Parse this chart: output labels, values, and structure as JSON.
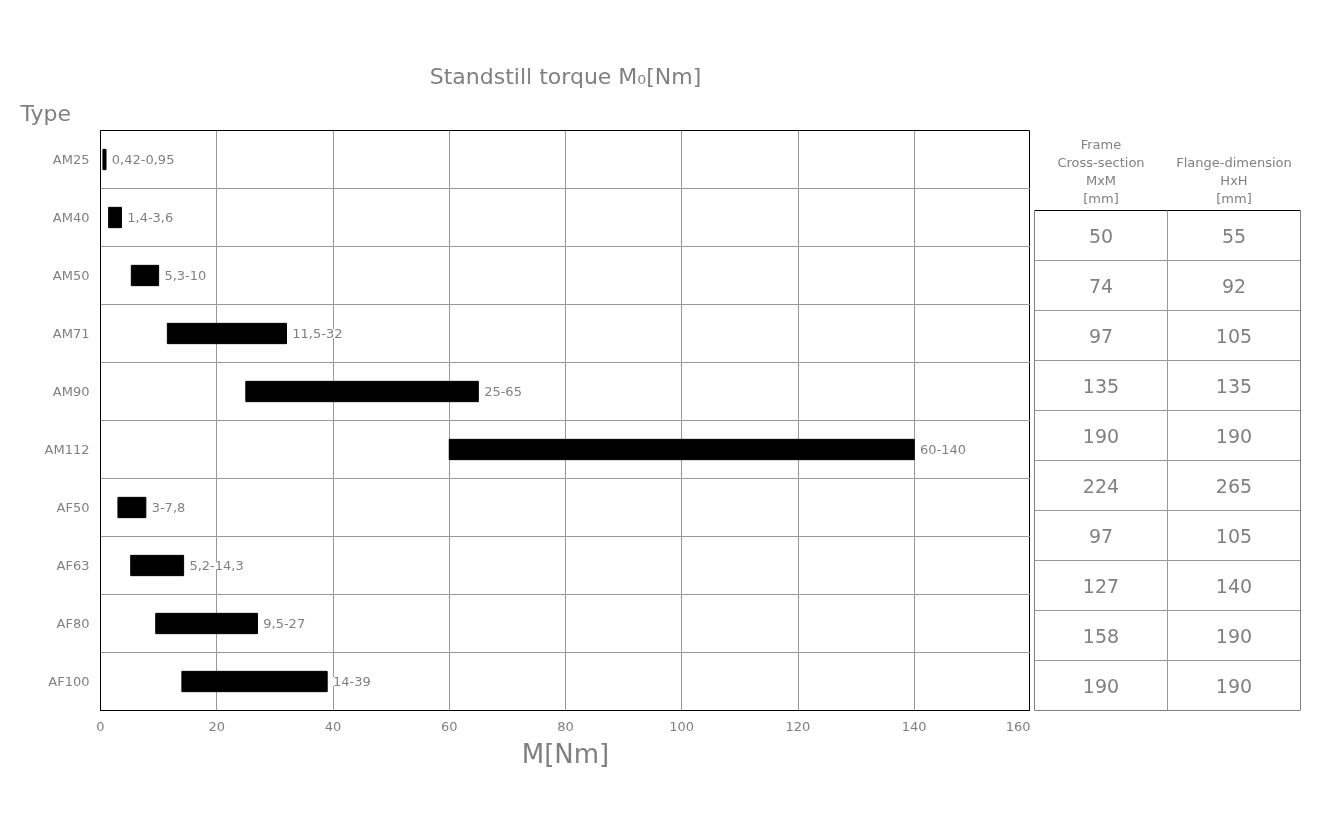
{
  "chart_data": {
    "type": "bar",
    "orientation": "horizontal",
    "title": "Standstill torque M₀[Nm]",
    "ylabel": "Type",
    "xlabel": "M[Nm]",
    "categories": [
      "AM25",
      "AM40",
      "AM50",
      "AM71",
      "AM90",
      "AM112",
      "AF50",
      "AF63",
      "AF80",
      "AF100"
    ],
    "base": [
      0.42,
      1.4,
      5.3,
      11.5,
      25,
      60,
      3,
      5.2,
      9.5,
      14
    ],
    "values": [
      0.53,
      2.2,
      4.7,
      20.5,
      40,
      80,
      4.8,
      9.1,
      17.5,
      25
    ],
    "color": "#000000",
    "value_labels": [
      "0,42-0,95",
      "1,4-3,6",
      "5,3-10",
      "11,5-32",
      "25-65",
      "60-140",
      "3-7,8",
      "5,2-14,3",
      "9,5-27",
      "14-39"
    ],
    "xlim": [
      0,
      160
    ],
    "xticks": [
      0,
      20,
      40,
      60,
      80,
      100,
      120,
      140,
      160
    ],
    "grid": "x",
    "annotations": [
      "Frame\nCross-section\nMxM\n[mm]",
      "Flange-dimension\nHxH\n[mm]",
      "50",
      "55",
      "74",
      "92",
      "97",
      "105",
      "135",
      "135",
      "190",
      "190",
      "224",
      "265",
      "97",
      "105",
      "127",
      "140",
      "158",
      "190",
      "190",
      "190"
    ]
  }
}
